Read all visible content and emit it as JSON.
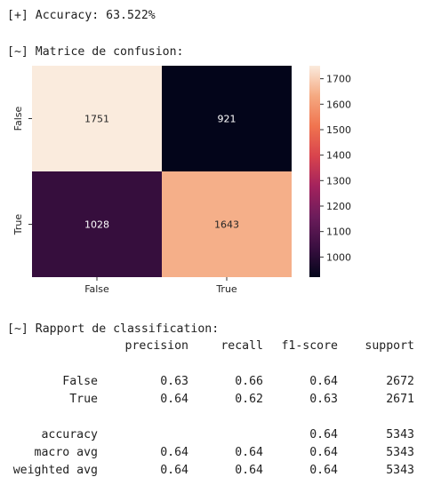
{
  "accuracy_line": "[+] Accuracy: 63.522%",
  "matrix_title": "[~] Matrice de confusion:",
  "report_title": "[~] Rapport de classification:",
  "chart_data": {
    "type": "heatmap",
    "rows": [
      "False",
      "True"
    ],
    "cols": [
      "False",
      "True"
    ],
    "values": [
      [
        1751,
        921
      ],
      [
        1028,
        1643
      ]
    ],
    "colorbar": {
      "min": 921,
      "max": 1751,
      "ticks": [
        1700,
        1600,
        1500,
        1400,
        1300,
        1200,
        1100,
        1000
      ]
    },
    "colormap": [
      "#03051a",
      "#3b0f41",
      "#6c1c5b",
      "#a3225d",
      "#d8434d",
      "#f0744f",
      "#f5a981",
      "#faebdd"
    ]
  },
  "report": {
    "headers": [
      "precision",
      "recall",
      "f1-score",
      "support"
    ],
    "rows": [
      {
        "label": "False",
        "values": [
          "0.63",
          "0.66",
          "0.64",
          "2672"
        ]
      },
      {
        "label": "True",
        "values": [
          "0.64",
          "0.62",
          "0.63",
          "2671"
        ]
      },
      {
        "label": "accuracy",
        "values": [
          "",
          "",
          "0.64",
          "5343"
        ]
      },
      {
        "label": "macro avg",
        "values": [
          "0.64",
          "0.64",
          "0.64",
          "5343"
        ]
      },
      {
        "label": "weighted avg",
        "values": [
          "0.64",
          "0.64",
          "0.64",
          "5343"
        ]
      }
    ]
  }
}
